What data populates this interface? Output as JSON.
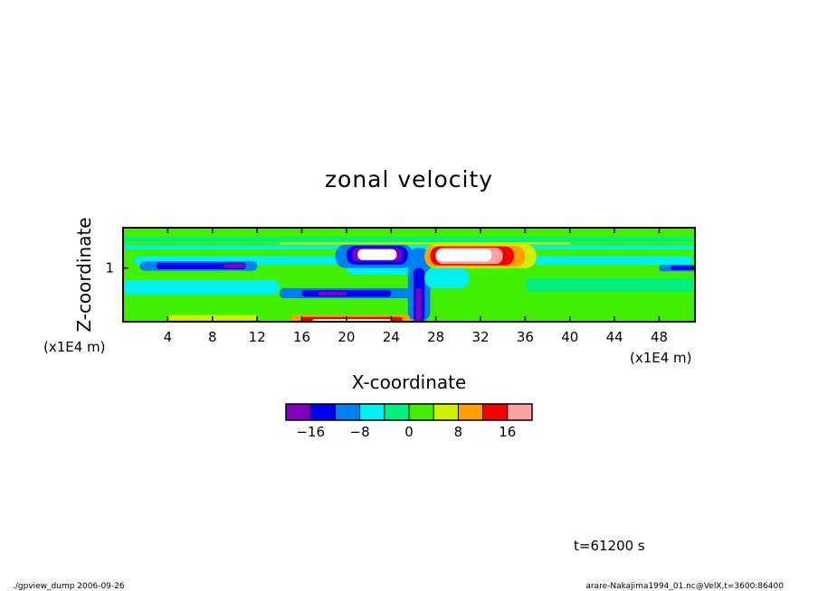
{
  "chart_data": {
    "type": "heatmap",
    "title": "zonal velocity",
    "xlabel": "X-coordinate",
    "ylabel": "Z-coordinate",
    "x_unit": "(x1E4 m)",
    "y_unit": "(x1E4 m)",
    "xlim": [
      0,
      51.2
    ],
    "ylim": [
      0.2,
      1.6
    ],
    "x_ticks": [
      4,
      8,
      12,
      16,
      20,
      24,
      28,
      32,
      36,
      40,
      44,
      48
    ],
    "x_tick_labels": [
      "4",
      "8",
      "12",
      "16",
      "20",
      "24",
      "28",
      "32",
      "36",
      "40",
      "44",
      "48"
    ],
    "y_ticks": [
      1
    ],
    "y_tick_labels": [
      "1"
    ],
    "grid": false,
    "colorbar": {
      "colors": [
        "#7f00bf",
        "#0000f0",
        "#0080f0",
        "#00f0f0",
        "#00f080",
        "#40f000",
        "#d0f000",
        "#ffa000",
        "#f00000",
        "#ffa0a0"
      ],
      "tick_values": [
        -16,
        -8,
        0,
        8,
        16
      ],
      "tick_labels": [
        "−16",
        "−8",
        "0",
        "8",
        "16"
      ],
      "level_min": -20,
      "level_step": 4,
      "above_max_color": "#ffffff"
    },
    "background_color": "#40f000",
    "regions": [
      {
        "x": [
          0,
          51.2
        ],
        "z": [
          1.39,
          1.46
        ],
        "level": 4
      },
      {
        "x": [
          0,
          51.2
        ],
        "z": [
          1.28,
          1.34
        ],
        "level": 3
      },
      {
        "x": [
          14,
          40
        ],
        "z": [
          1.35,
          1.38
        ],
        "level": 6
      },
      {
        "x": [
          1,
          51
        ],
        "z": [
          1.05,
          1.18
        ],
        "level": 3
      },
      {
        "x": [
          1.5,
          12
        ],
        "z": [
          0.96,
          1.1
        ],
        "level": 2
      },
      {
        "x": [
          3,
          11
        ],
        "z": [
          0.98,
          1.08
        ],
        "level": 1
      },
      {
        "x": [
          9,
          11
        ],
        "z": [
          1.0,
          1.07
        ],
        "level": 0
      },
      {
        "x": [
          0,
          14
        ],
        "z": [
          0.6,
          0.82
        ],
        "level": 3
      },
      {
        "x": [
          2,
          13
        ],
        "z": [
          0.28,
          0.4
        ],
        "level": 5
      },
      {
        "x": [
          4,
          12
        ],
        "z": [
          0.22,
          0.3
        ],
        "level": 6
      },
      {
        "x": [
          14,
          26
        ],
        "z": [
          0.55,
          0.7
        ],
        "level": 2
      },
      {
        "x": [
          16,
          24
        ],
        "z": [
          0.57,
          0.67
        ],
        "level": 1
      },
      {
        "x": [
          17.5,
          20
        ],
        "z": [
          0.59,
          0.65
        ],
        "level": 0
      },
      {
        "x": [
          20,
          26
        ],
        "z": [
          0.9,
          1.1
        ],
        "level": 3
      },
      {
        "x": [
          19,
          26
        ],
        "z": [
          1.0,
          1.35
        ],
        "level": 2
      },
      {
        "x": [
          20,
          25.5
        ],
        "z": [
          1.05,
          1.33
        ],
        "level": 1
      },
      {
        "x": [
          20.5,
          25
        ],
        "z": [
          1.1,
          1.3
        ],
        "level": 0
      },
      {
        "x": [
          21,
          24.5
        ],
        "z": [
          1.12,
          1.28
        ],
        "level": 10
      },
      {
        "x": [
          15,
          26
        ],
        "z": [
          0.2,
          0.3
        ],
        "level": 7
      },
      {
        "x": [
          16,
          25
        ],
        "z": [
          0.2,
          0.27
        ],
        "level": 8
      },
      {
        "x": [
          17,
          24
        ],
        "z": [
          0.2,
          0.24
        ],
        "level": 10
      },
      {
        "x": [
          25.5,
          27.5
        ],
        "z": [
          0.2,
          1.3
        ],
        "level": 2
      },
      {
        "x": [
          26,
          27
        ],
        "z": [
          0.2,
          1.0
        ],
        "level": 1
      },
      {
        "x": [
          26.2,
          26.7
        ],
        "z": [
          0.2,
          0.7
        ],
        "level": 0
      },
      {
        "x": [
          27,
          37
        ],
        "z": [
          1.0,
          1.35
        ],
        "level": 6
      },
      {
        "x": [
          27,
          36
        ],
        "z": [
          1.02,
          1.33
        ],
        "level": 7
      },
      {
        "x": [
          27.5,
          35
        ],
        "z": [
          1.04,
          1.32
        ],
        "level": 8
      },
      {
        "x": [
          28,
          34
        ],
        "z": [
          1.06,
          1.3
        ],
        "level": 9
      },
      {
        "x": [
          28,
          33
        ],
        "z": [
          1.1,
          1.28
        ],
        "level": 10
      },
      {
        "x": [
          27,
          31
        ],
        "z": [
          0.7,
          1.0
        ],
        "level": 3
      },
      {
        "x": [
          36,
          51.2
        ],
        "z": [
          0.65,
          0.85
        ],
        "level": 4
      },
      {
        "x": [
          38,
          51
        ],
        "z": [
          0.3,
          0.5
        ],
        "level": 5
      },
      {
        "x": [
          48,
          51.2
        ],
        "z": [
          0.95,
          1.05
        ],
        "level": 2
      },
      {
        "x": [
          49,
          51.2
        ],
        "z": [
          0.97,
          1.03
        ],
        "level": 1
      }
    ]
  },
  "time_label": "t=61200 s",
  "footer_left": "./gpview_dump  2006-09-26",
  "footer_right": "arare-Nakajima1994_01.nc@VelX,t=3600:86400"
}
